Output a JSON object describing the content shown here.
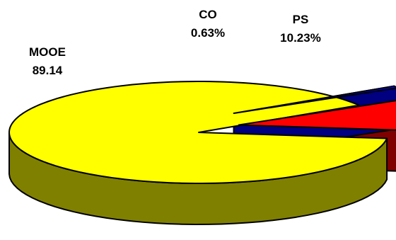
{
  "chart_data": {
    "type": "pie",
    "title": "",
    "slices": [
      {
        "name": "PS",
        "value_label": "10.23%",
        "value": 10.23,
        "color": "#ff0000",
        "side_color": "#800000",
        "exploded": true
      },
      {
        "name": "MOOE",
        "value_label": "89.14",
        "value": 89.14,
        "color": "#ffff00",
        "side_color": "#808000",
        "exploded": false
      },
      {
        "name": "CO",
        "value_label": "0.63%",
        "value": 0.63,
        "color": "#0000ff",
        "side_color": "#000080",
        "exploded": true
      }
    ],
    "style": "3d-tilted",
    "legend": "none"
  }
}
